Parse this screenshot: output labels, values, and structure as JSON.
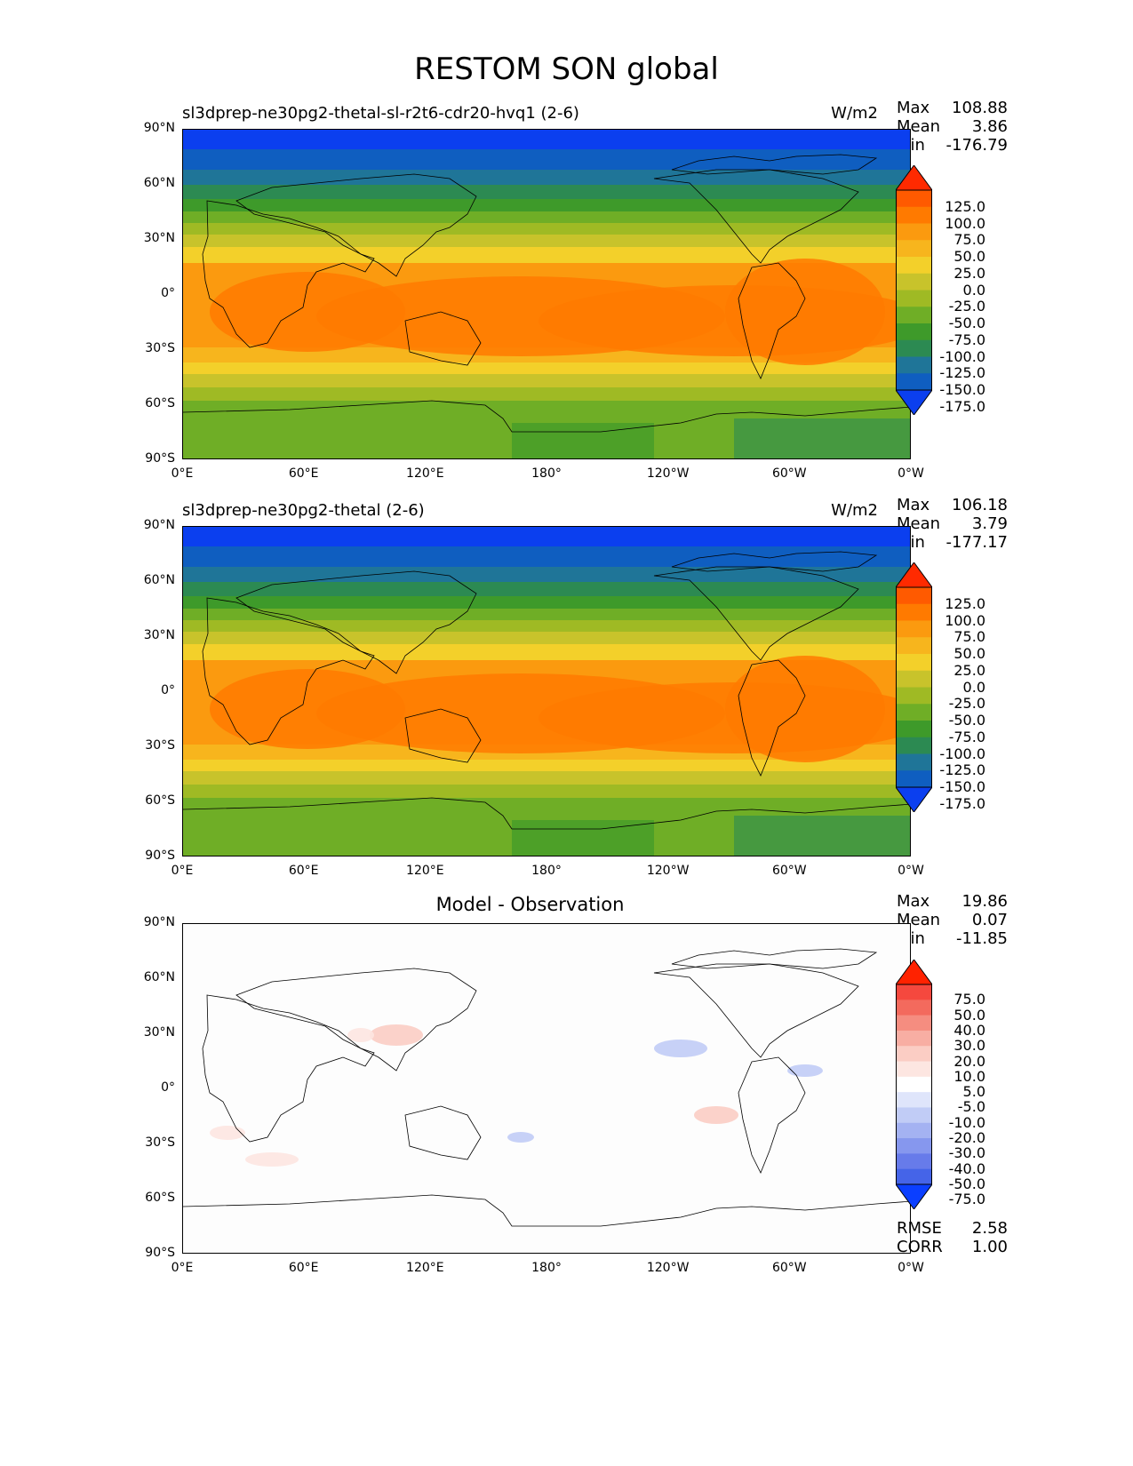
{
  "figure_title": "RESTOM SON global",
  "x_ticks": [
    "0°E",
    "60°E",
    "120°E",
    "180°",
    "120°W",
    "60°W",
    "0°W"
  ],
  "y_ticks": [
    "90°N",
    "60°N",
    "30°N",
    "0°",
    "30°S",
    "60°S",
    "90°S"
  ],
  "panels": [
    {
      "title": "sl3dprep-ne30pg2-thetal-sl-r2t6-cdr20-hvq1 (2-6)",
      "units": "W/m2",
      "stats": {
        "max_label": "Max",
        "max": "108.88",
        "mean_label": "Mean",
        "mean": "3.86",
        "min_label": "Min",
        "min": "-176.79"
      }
    },
    {
      "title": "sl3dprep-ne30pg2-thetal (2-6)",
      "units": "W/m2",
      "stats": {
        "max_label": "Max",
        "max": "106.18",
        "mean_label": "Mean",
        "mean": "3.79",
        "min_label": "Min",
        "min": "-177.17"
      }
    },
    {
      "title": "Model - Observation",
      "units": "",
      "stats": {
        "max_label": "Max",
        "max": "19.86",
        "mean_label": "Mean",
        "mean": "0.07",
        "min_label": "Min",
        "min": "-11.85"
      },
      "metrics": {
        "rmse_label": "RMSE",
        "rmse": "2.58",
        "corr_label": "CORR",
        "corr": "1.00"
      }
    }
  ],
  "colorbar_main": {
    "labels": [
      "125.0",
      "100.0",
      "75.0",
      "50.0",
      "25.0",
      "0.0",
      "-25.0",
      "-50.0",
      "-75.0",
      "-100.0",
      "-125.0",
      "-150.0",
      "-175.0"
    ],
    "colors": [
      "#ff2a00",
      "#ff5a00",
      "#ff7a00",
      "#fb9a0f",
      "#f7b51d",
      "#f3d02a",
      "#c8c32b",
      "#9fba24",
      "#6fae26",
      "#3e9a2a",
      "#2c8a52",
      "#1f7598",
      "#0f5ec0",
      "#0b3fef"
    ]
  },
  "colorbar_diff": {
    "labels": [
      "75.0",
      "50.0",
      "40.0",
      "30.0",
      "20.0",
      "10.0",
      "5.0",
      "-5.0",
      "-10.0",
      "-20.0",
      "-30.0",
      "-40.0",
      "-50.0",
      "-75.0"
    ],
    "colors": [
      "#ff2200",
      "#f5483e",
      "#f36a5d",
      "#f58d80",
      "#f8aea3",
      "#fbcdc4",
      "#fde6e1",
      "#ffffff",
      "#dfe5fb",
      "#c1ccf6",
      "#a4b2f2",
      "#8697ee",
      "#677bea",
      "#4564e8",
      "#0b3fff"
    ]
  }
}
